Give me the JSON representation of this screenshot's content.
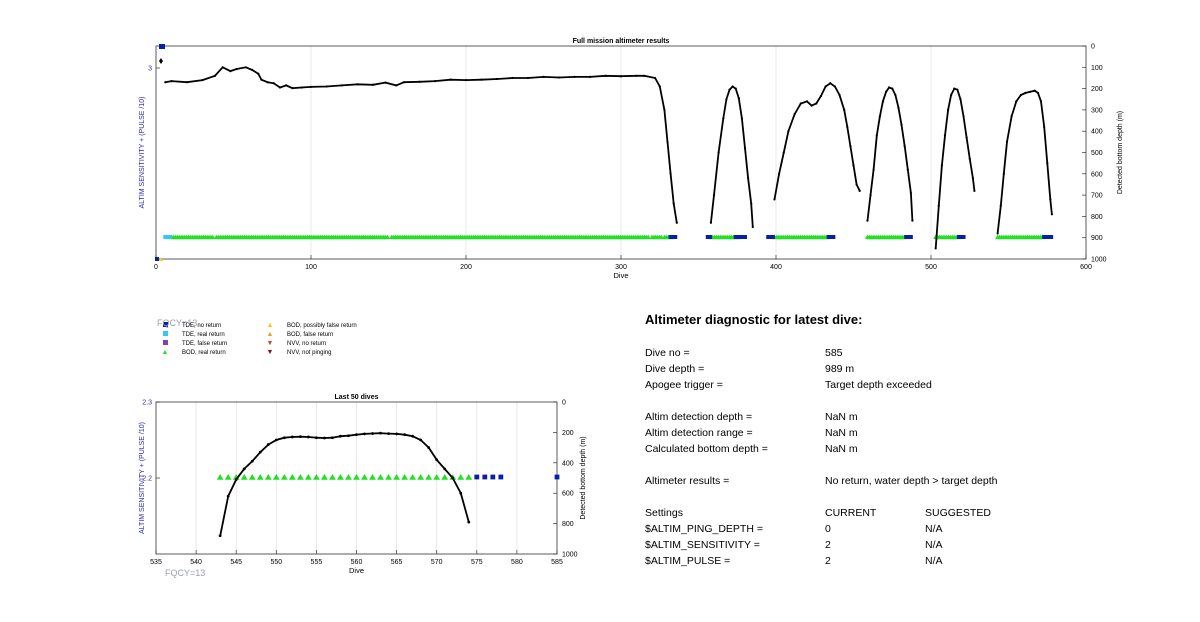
{
  "colors": {
    "tde_no_return": "#0a1fa8",
    "tde_real_return": "#34c6f4",
    "tde_false_return": "#7f3fbf",
    "bod_real_return": "#22e022",
    "bod_possibly_false": "#f2c81a",
    "bod_false_return": "#f29e1a",
    "nvv_no_return": "#d9421a",
    "nvv_not_pinging": "#7a1212",
    "left_axis": "#2a2ab8",
    "fqcy": "#9aa0aa"
  },
  "legend": [
    {
      "label": "TDE, no return",
      "icon": "square",
      "color_key": "tde_no_return"
    },
    {
      "label": "TDE, real return",
      "icon": "square",
      "color_key": "tde_real_return"
    },
    {
      "label": "TDE, false return",
      "icon": "square",
      "color_key": "tde_false_return"
    },
    {
      "label": "BOD, real return",
      "icon": "triangle-up",
      "color_key": "bod_real_return"
    },
    {
      "label": "BOD, possibly false return",
      "icon": "triangle-up",
      "color_key": "bod_possibly_false"
    },
    {
      "label": "BOD, false return",
      "icon": "triangle-up",
      "color_key": "bod_false_return"
    },
    {
      "label": "NVV, no return",
      "icon": "triangle-down",
      "color_key": "nvv_no_return"
    },
    {
      "label": "NVV, not pinging",
      "icon": "triangle-down",
      "color_key": "nvv_not_pinging"
    }
  ],
  "fqcy_top": "FQCY=13",
  "fqcy_bottom": "FQCY=13",
  "chart_data": [
    {
      "type": "line",
      "title": "Full mission altimeter results",
      "xlabel": "Dive",
      "ylabel_left": "ALTIM SENSITIVITY + (PULSE /10)",
      "ylabel_right": "Detected bottom depth (m)",
      "xlim": [
        0,
        600
      ],
      "xticks": [
        0,
        100,
        200,
        300,
        400,
        500,
        600
      ],
      "yticks_left": [
        "3"
      ],
      "ylim_right": [
        0,
        1000
      ],
      "yticks_right": [
        0,
        100,
        200,
        300,
        400,
        500,
        600,
        700,
        800,
        900,
        1000
      ],
      "grid": "vertical",
      "depth_series": [
        [
          [
            6,
            170
          ],
          [
            10,
            165
          ],
          [
            20,
            170
          ],
          [
            30,
            160
          ],
          [
            38,
            140
          ],
          [
            43,
            100
          ],
          [
            48,
            118
          ],
          [
            52,
            108
          ],
          [
            58,
            100
          ],
          [
            62,
            112
          ],
          [
            66,
            130
          ],
          [
            68,
            158
          ],
          [
            72,
            170
          ],
          [
            76,
            175
          ],
          [
            80,
            195
          ],
          [
            84,
            185
          ],
          [
            88,
            198
          ],
          [
            94,
            195
          ],
          [
            100,
            192
          ],
          [
            110,
            190
          ],
          [
            120,
            185
          ],
          [
            130,
            180
          ],
          [
            140,
            182
          ],
          [
            148,
            172
          ],
          [
            155,
            185
          ],
          [
            160,
            170
          ],
          [
            170,
            168
          ],
          [
            180,
            165
          ],
          [
            190,
            158
          ],
          [
            200,
            160
          ],
          [
            210,
            158
          ],
          [
            220,
            155
          ],
          [
            230,
            150
          ],
          [
            240,
            150
          ],
          [
            250,
            145
          ],
          [
            260,
            148
          ],
          [
            270,
            145
          ],
          [
            280,
            145
          ],
          [
            290,
            140
          ],
          [
            300,
            142
          ],
          [
            310,
            140
          ],
          [
            315,
            140
          ],
          [
            322,
            150
          ],
          [
            325,
            190
          ],
          [
            328,
            300
          ],
          [
            330,
            450
          ],
          [
            332,
            600
          ],
          [
            334,
            740
          ],
          [
            336,
            830
          ]
        ],
        [
          [
            358,
            830
          ],
          [
            360,
            700
          ],
          [
            363,
            500
          ],
          [
            366,
            340
          ],
          [
            368,
            250
          ],
          [
            370,
            205
          ],
          [
            372,
            190
          ],
          [
            374,
            200
          ],
          [
            376,
            245
          ],
          [
            378,
            340
          ],
          [
            380,
            480
          ],
          [
            382,
            620
          ],
          [
            384,
            740
          ],
          [
            385,
            850
          ]
        ],
        [
          [
            399,
            720
          ],
          [
            402,
            600
          ],
          [
            405,
            500
          ],
          [
            408,
            400
          ],
          [
            412,
            320
          ],
          [
            416,
            270
          ],
          [
            420,
            260
          ],
          [
            423,
            280
          ],
          [
            426,
            270
          ],
          [
            429,
            235
          ],
          [
            432,
            190
          ],
          [
            435,
            175
          ],
          [
            438,
            190
          ],
          [
            441,
            230
          ],
          [
            444,
            300
          ],
          [
            446,
            380
          ],
          [
            448,
            470
          ],
          [
            450,
            560
          ],
          [
            452,
            650
          ],
          [
            454,
            680
          ]
        ],
        [
          [
            459,
            820
          ],
          [
            461,
            700
          ],
          [
            463,
            580
          ],
          [
            465,
            420
          ],
          [
            467,
            330
          ],
          [
            469,
            260
          ],
          [
            471,
            215
          ],
          [
            473,
            195
          ],
          [
            475,
            200
          ],
          [
            477,
            230
          ],
          [
            479,
            290
          ],
          [
            481,
            370
          ],
          [
            483,
            470
          ],
          [
            485,
            580
          ],
          [
            487,
            690
          ],
          [
            488,
            820
          ]
        ],
        [
          [
            503,
            950
          ],
          [
            505,
            750
          ],
          [
            507,
            560
          ],
          [
            509,
            420
          ],
          [
            511,
            300
          ],
          [
            513,
            230
          ],
          [
            515,
            200
          ],
          [
            517,
            205
          ],
          [
            519,
            250
          ],
          [
            521,
            330
          ],
          [
            523,
            430
          ],
          [
            525,
            530
          ],
          [
            527,
            620
          ],
          [
            528,
            680
          ]
        ],
        [
          [
            543,
            880
          ],
          [
            545,
            750
          ],
          [
            547,
            600
          ],
          [
            549,
            450
          ],
          [
            552,
            330
          ],
          [
            555,
            260
          ],
          [
            558,
            230
          ],
          [
            561,
            220
          ],
          [
            564,
            215
          ],
          [
            567,
            210
          ],
          [
            569,
            220
          ],
          [
            571,
            260
          ],
          [
            573,
            380
          ],
          [
            575,
            550
          ],
          [
            577,
            720
          ],
          [
            578,
            790
          ]
        ]
      ],
      "bod_ranges": [
        [
          9,
          37
        ],
        [
          39,
          150
        ],
        [
          152,
          318
        ],
        [
          320,
          326
        ],
        [
          328,
          333
        ],
        [
          358,
          376
        ],
        [
          399,
          434
        ],
        [
          459,
          484
        ],
        [
          503,
          518
        ],
        [
          543,
          573
        ]
      ],
      "tde_real_ranges": [
        [
          6,
          9
        ]
      ],
      "tde_no_return_ranges": [
        [
          332,
          336
        ],
        [
          356,
          358
        ],
        [
          374,
          380
        ],
        [
          395,
          399
        ],
        [
          434,
          438
        ],
        [
          484,
          488
        ],
        [
          518,
          522
        ],
        [
          573,
          578
        ]
      ]
    },
    {
      "type": "line",
      "title": "Last 50 dives",
      "xlabel": "Dive",
      "ylabel_left": "ALTIM SENSITIVITY + (PULSE /10)",
      "ylabel_right": "Detected bottom depth (m)",
      "xlim": [
        535,
        585
      ],
      "xticks": [
        535,
        540,
        545,
        550,
        555,
        560,
        565,
        570,
        575,
        580,
        585
      ],
      "ylim_left": [
        2.1,
        2.3
      ],
      "yticks_left": [
        "2.3",
        "2.2"
      ],
      "ylim_right": [
        0,
        1000
      ],
      "yticks_right": [
        0,
        200,
        400,
        600,
        800,
        1000
      ],
      "grid": "vertical",
      "depth": {
        "x": [
          543,
          544,
          545,
          546,
          547,
          548,
          549,
          550,
          551,
          552,
          553,
          554,
          555,
          556,
          557,
          558,
          559,
          560,
          561,
          562,
          563,
          564,
          565,
          566,
          567,
          568,
          569,
          570,
          571,
          572,
          573,
          574
        ],
        "y": [
          880,
          620,
          510,
          440,
          390,
          330,
          280,
          250,
          235,
          230,
          228,
          230,
          235,
          237,
          235,
          225,
          222,
          215,
          210,
          207,
          205,
          208,
          210,
          215,
          225,
          250,
          300,
          380,
          440,
          500,
          600,
          790
        ]
      },
      "bod_real_return_x": [
        543,
        544,
        545,
        546,
        547,
        548,
        549,
        550,
        551,
        552,
        553,
        554,
        555,
        556,
        557,
        558,
        559,
        560,
        561,
        562,
        563,
        564,
        565,
        566,
        567,
        568,
        569,
        570,
        571,
        572,
        573,
        574
      ],
      "tde_no_return_x": [
        575,
        576,
        577,
        578,
        585
      ]
    }
  ],
  "diagnostic": {
    "title": "Altimeter diagnostic for latest dive:",
    "rows": [
      {
        "label": "Dive no =",
        "value": "585"
      },
      {
        "label": "Dive depth =",
        "value": "989 m"
      },
      {
        "label": "Apogee trigger =",
        "value": "Target depth exceeded"
      },
      {
        "label": "Altim detection depth =",
        "value": "NaN m"
      },
      {
        "label": "Altim detection range =",
        "value": "NaN m"
      },
      {
        "label": "Calculated bottom depth =",
        "value": "NaN m"
      },
      {
        "label": "Altimeter results =",
        "value": "No return, water depth > target depth"
      }
    ],
    "settings_header": {
      "label": "Settings",
      "current": "CURRENT",
      "suggested": "SUGGESTED"
    },
    "settings": [
      {
        "label": "$ALTIM_PING_DEPTH =",
        "current": "0",
        "suggested": "N/A"
      },
      {
        "label": "$ALTIM_SENSITIVITY =",
        "current": "2",
        "suggested": "N/A"
      },
      {
        "label": "$ALTIM_PULSE =",
        "current": "2",
        "suggested": "N/A"
      }
    ]
  }
}
